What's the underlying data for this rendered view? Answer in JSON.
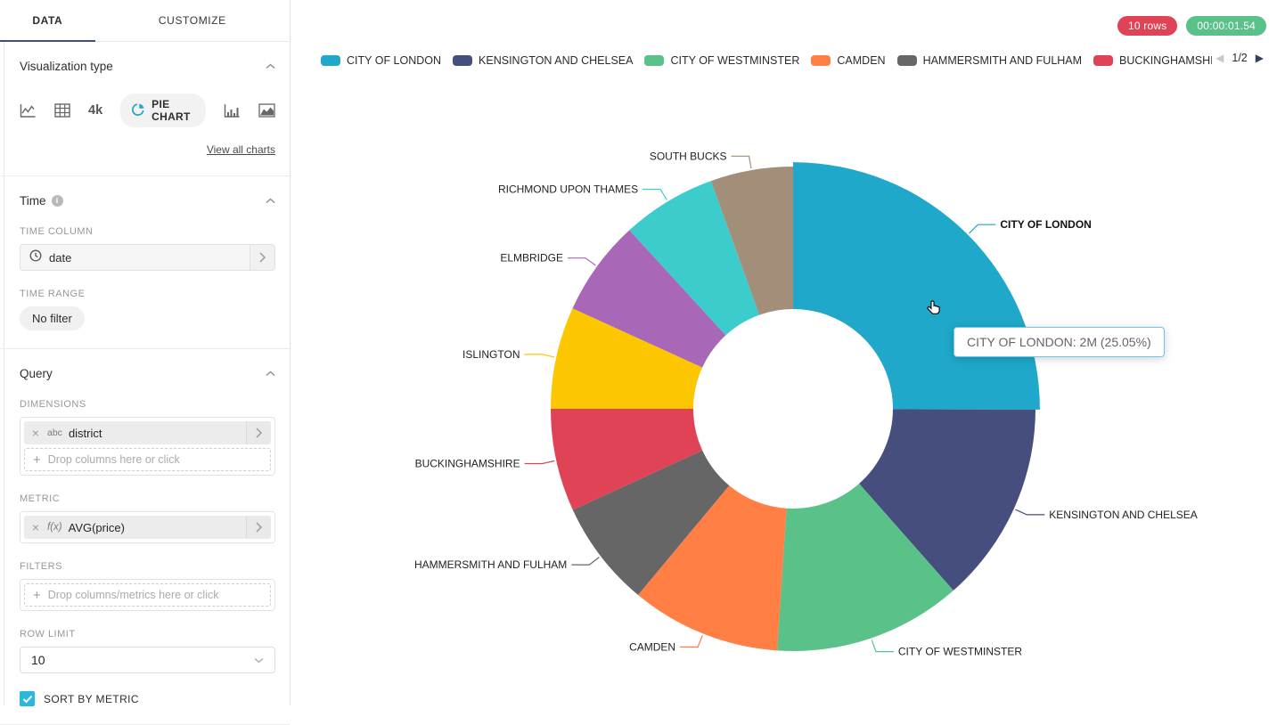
{
  "sidebar": {
    "tabs": [
      {
        "label": "DATA",
        "active": true
      },
      {
        "label": "CUSTOMIZE",
        "active": false
      }
    ],
    "viz_section": {
      "title": "Visualization type",
      "big_number_label": "4k",
      "selected_label": "PIE CHART",
      "view_all_label": "View all charts"
    },
    "time_section": {
      "title": "Time",
      "time_column_label": "TIME COLUMN",
      "time_column_value": "date",
      "time_range_label": "TIME RANGE",
      "time_range_value": "No filter"
    },
    "query_section": {
      "title": "Query",
      "dimensions_label": "DIMENSIONS",
      "dimension_chip": {
        "close": "×",
        "type": "abc",
        "name": "district"
      },
      "dimensions_placeholder": "Drop columns here or click",
      "metric_label": "METRIC",
      "metric_chip": {
        "close": "×",
        "type": "f(x)",
        "name": "AVG(price)"
      },
      "filters_label": "FILTERS",
      "filters_placeholder": "Drop columns/metrics here or click",
      "row_limit_label": "ROW LIMIT",
      "row_limit_value": "10",
      "sort_label": "SORT BY METRIC",
      "sort_checked": true
    }
  },
  "header": {
    "rows_badge": "10 rows",
    "rows_badge_color": "#E04355",
    "duration_badge": "00:00:01.54",
    "duration_badge_color": "#5AC189"
  },
  "legend": {
    "page_label": "1/2",
    "prev_icon": "◀",
    "next_icon": "▶",
    "items": [
      {
        "label": "CITY OF LONDON",
        "color": "#1FA8C9"
      },
      {
        "label": "KENSINGTON AND CHELSEA",
        "color": "#454E7C"
      },
      {
        "label": "CITY OF WESTMINSTER",
        "color": "#5AC189"
      },
      {
        "label": "CAMDEN",
        "color": "#FF7F44"
      },
      {
        "label": "HAMMERSMITH AND FULHAM",
        "color": "#666666"
      },
      {
        "label": "BUCKINGHAMSHIRE",
        "color": "#E04355"
      },
      {
        "label": "",
        "color": "#FCC700"
      }
    ]
  },
  "chart_data": {
    "type": "pie",
    "subtype": "donut",
    "dimension": "district",
    "metric": "AVG(price)",
    "labels_position": "outside",
    "legend_position": "top",
    "inner_radius_ratio": 0.41,
    "slices": [
      {
        "label": "CITY OF LONDON",
        "percent": 25.05,
        "color": "#1FA8C9",
        "value_label": "2M",
        "hovered": true
      },
      {
        "label": "KENSINGTON AND CHELSEA",
        "percent": 13.45,
        "color": "#454E7C"
      },
      {
        "label": "CITY OF WESTMINSTER",
        "percent": 12.55,
        "color": "#5AC189"
      },
      {
        "label": "CAMDEN",
        "percent": 10.0,
        "color": "#FF7F44"
      },
      {
        "label": "HAMMERSMITH AND FULHAM",
        "percent": 7.1,
        "color": "#666666"
      },
      {
        "label": "BUCKINGHAMSHIRE",
        "percent": 6.85,
        "color": "#E04355"
      },
      {
        "label": "ISLINGTON",
        "percent": 6.8,
        "color": "#FCC700"
      },
      {
        "label": "ELMBRIDGE",
        "percent": 6.4,
        "color": "#A868B7"
      },
      {
        "label": "RICHMOND UPON THAMES",
        "percent": 6.3,
        "color": "#3CCCCB"
      },
      {
        "label": "SOUTH BUCKS",
        "percent": 5.5,
        "color": "#A38F79"
      }
    ]
  },
  "tooltip": {
    "text": "CITY OF LONDON: 2M (25.05%)"
  }
}
